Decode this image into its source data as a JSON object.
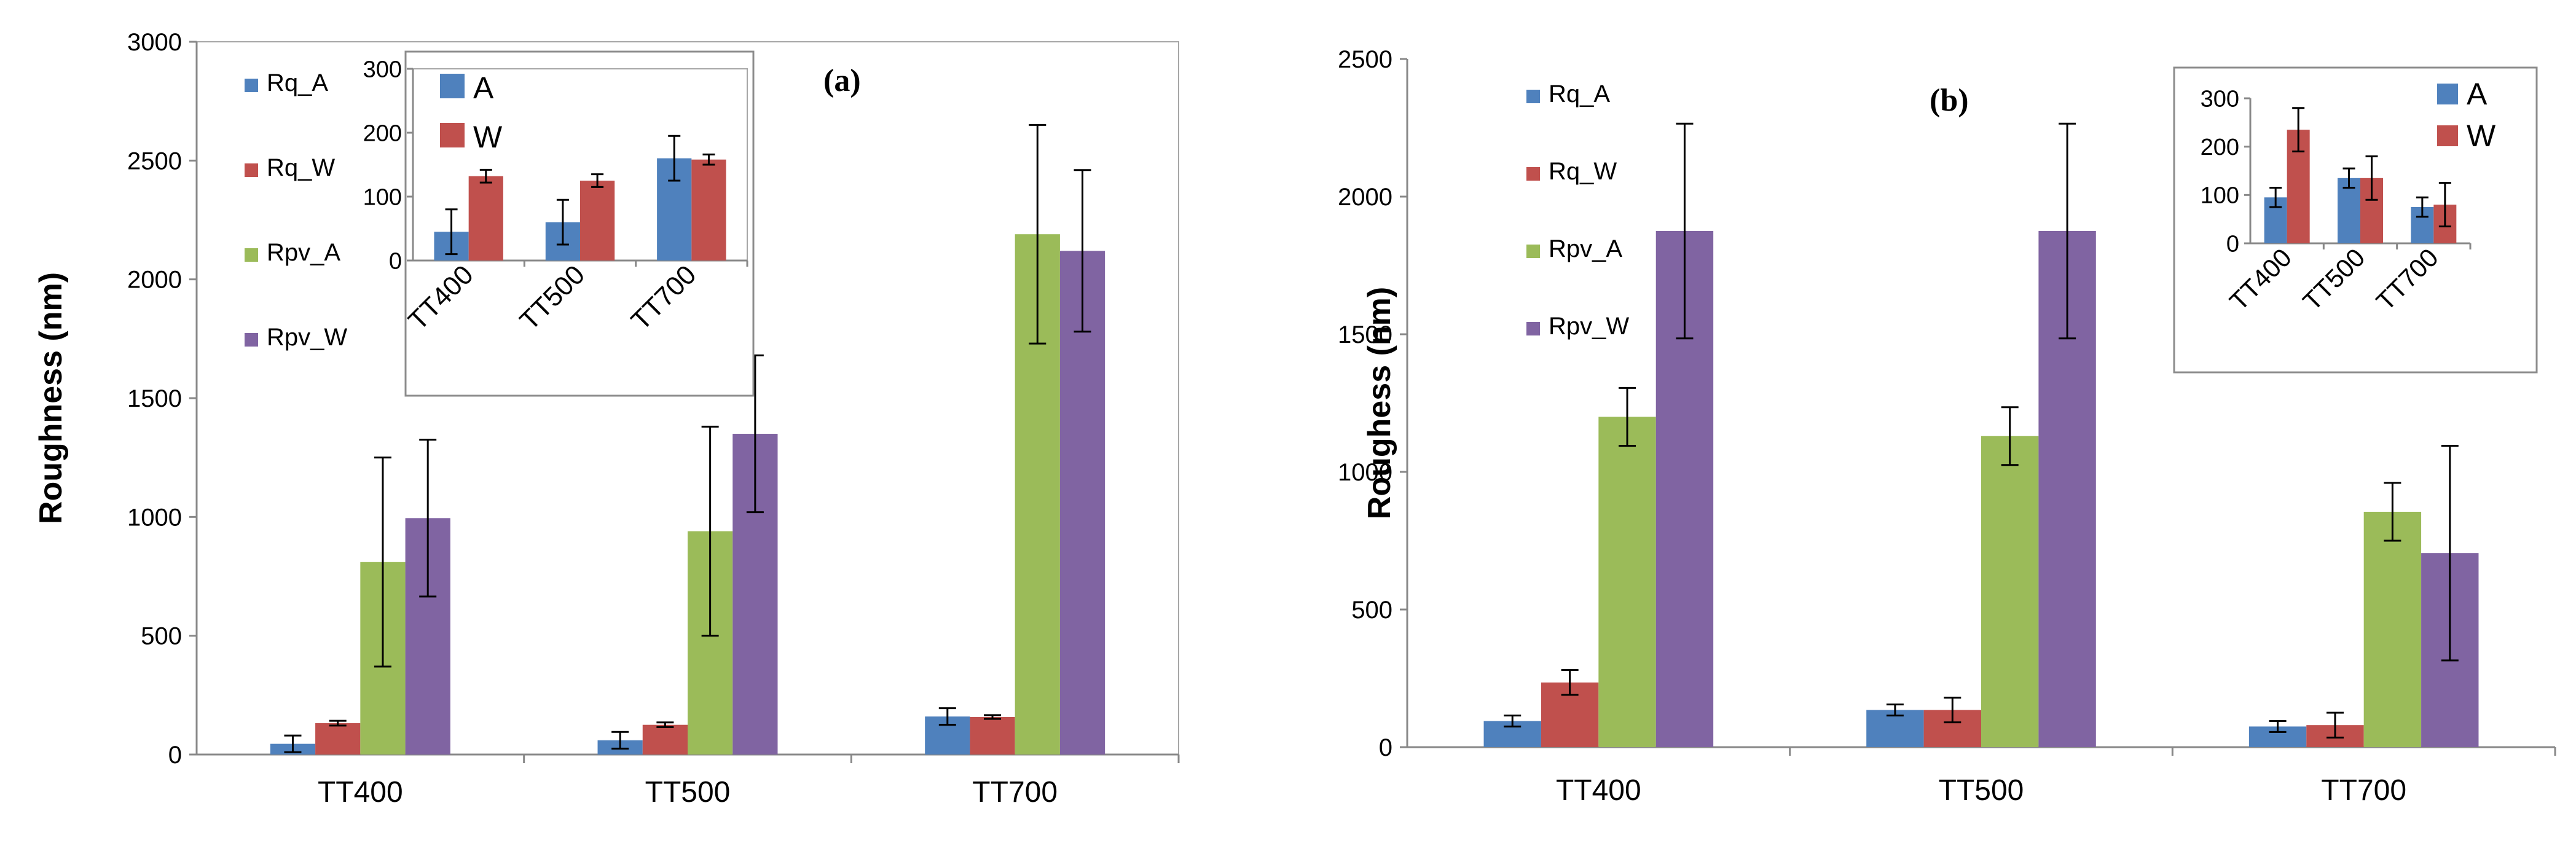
{
  "figure": {
    "colors": {
      "Rq_A": "#4F81BD",
      "Rq_W": "#C0504D",
      "Rpv_A": "#9BBB59",
      "Rpv_W": "#8064A2",
      "axis": "#888888",
      "error_bar": "#000000"
    }
  },
  "chart_data": [
    {
      "id": "a",
      "type": "bar",
      "panel_label": "(a)",
      "title": "",
      "xlabel": "",
      "ylabel": "Roughness (nm)",
      "categories": [
        "TT400",
        "TT500",
        "TT700"
      ],
      "ylim": [
        0,
        3000
      ],
      "yticks": [
        0,
        500,
        1000,
        1500,
        2000,
        2500,
        3000
      ],
      "legend": "left-inside",
      "series": [
        {
          "name": "Rq_A",
          "color_key": "Rq_A",
          "values": [
            45,
            60,
            160
          ],
          "errors": [
            35,
            35,
            35
          ]
        },
        {
          "name": "Rq_W",
          "color_key": "Rq_W",
          "values": [
            132,
            125,
            158
          ],
          "errors": [
            10,
            10,
            8
          ]
        },
        {
          "name": "Rpv_A",
          "color_key": "Rpv_A",
          "values": [
            810,
            940,
            2190
          ],
          "errors": [
            440,
            440,
            460
          ]
        },
        {
          "name": "Rpv_W",
          "color_key": "Rpv_W",
          "values": [
            995,
            1350,
            2120
          ],
          "errors": [
            330,
            330,
            340
          ]
        }
      ],
      "inset": {
        "categories": [
          "TT400",
          "TT500",
          "TT700"
        ],
        "ylim": [
          0,
          300
        ],
        "yticks": [
          0,
          100,
          200,
          300
        ],
        "legend": "top-left",
        "series": [
          {
            "name": "A",
            "color_key": "Rq_A",
            "values": [
              45,
              60,
              160
            ],
            "errors": [
              35,
              35,
              35
            ]
          },
          {
            "name": "W",
            "color_key": "Rq_W",
            "values": [
              132,
              125,
              158
            ],
            "errors": [
              10,
              10,
              8
            ]
          }
        ]
      }
    },
    {
      "id": "b",
      "type": "bar",
      "panel_label": "(b)",
      "title": "",
      "xlabel": "",
      "ylabel": "Roughess (nm)",
      "categories": [
        "TT400",
        "TT500",
        "TT700"
      ],
      "ylim": [
        0,
        2500
      ],
      "yticks": [
        0,
        500,
        1000,
        1500,
        2000,
        2500
      ],
      "legend": "left-inside",
      "series": [
        {
          "name": "Rq_A",
          "color_key": "Rq_A",
          "values": [
            95,
            135,
            75
          ],
          "errors": [
            20,
            20,
            20
          ]
        },
        {
          "name": "Rq_W",
          "color_key": "Rq_W",
          "values": [
            235,
            135,
            80
          ],
          "errors": [
            45,
            45,
            45
          ]
        },
        {
          "name": "Rpv_A",
          "color_key": "Rpv_A",
          "values": [
            1200,
            1130,
            855
          ],
          "errors": [
            105,
            105,
            105
          ]
        },
        {
          "name": "Rpv_W",
          "color_key": "Rpv_W",
          "values": [
            1875,
            1875,
            705
          ],
          "errors": [
            390,
            390,
            390
          ]
        }
      ],
      "inset": {
        "categories": [
          "TT400",
          "TT500",
          "TT700"
        ],
        "ylim": [
          0,
          300
        ],
        "yticks": [
          0,
          100,
          200,
          300
        ],
        "legend": "top-right",
        "series": [
          {
            "name": "A",
            "color_key": "Rq_A",
            "values": [
              95,
              135,
              75
            ],
            "errors": [
              20,
              20,
              20
            ]
          },
          {
            "name": "W",
            "color_key": "Rq_W",
            "values": [
              235,
              135,
              80
            ],
            "errors": [
              45,
              45,
              45
            ]
          }
        ]
      }
    }
  ]
}
